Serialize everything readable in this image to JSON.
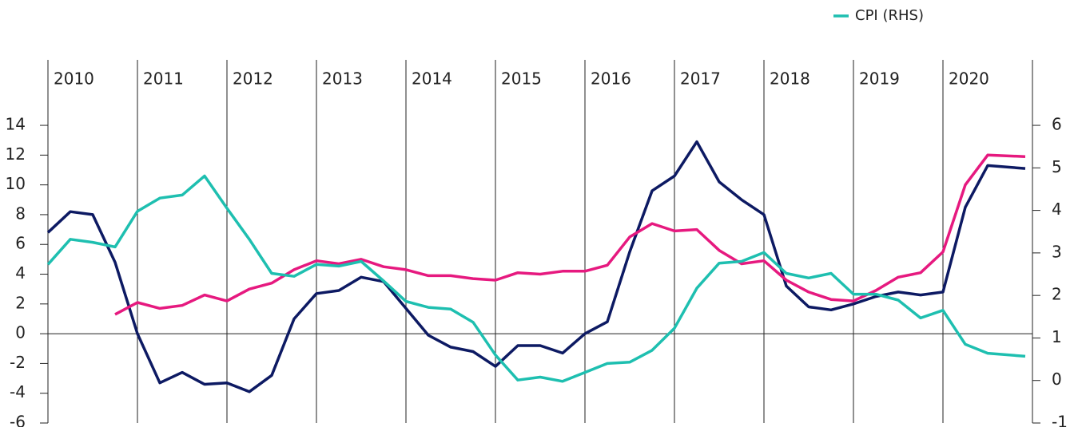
{
  "chart_data": {
    "type": "line",
    "x": [
      2010,
      2010.25,
      2010.5,
      2010.75,
      2011,
      2011.25,
      2011.5,
      2011.75,
      2012,
      2012.25,
      2012.5,
      2012.75,
      2013,
      2013.25,
      2013.5,
      2013.75,
      2014,
      2014.25,
      2014.5,
      2014.75,
      2015,
      2015.25,
      2015.5,
      2015.75,
      2016,
      2016.25,
      2016.5,
      2016.75,
      2017,
      2017.25,
      2017.5,
      2017.75,
      2018,
      2018.25,
      2018.5,
      2018.75,
      2019,
      2019.25,
      2019.5,
      2019.75,
      2020,
      2020.25,
      2020.5,
      2020.92
    ],
    "series": [
      {
        "color": "#0d1a63",
        "values": [
          6.8,
          8.2,
          8.0,
          4.8,
          0.0,
          -3.3,
          -2.6,
          -3.4,
          -3.3,
          -3.9,
          -2.8,
          1.0,
          2.7,
          2.9,
          3.8,
          3.5,
          1.7,
          -0.1,
          -0.9,
          -1.2,
          -2.2,
          -0.8,
          -0.8,
          -1.3,
          0.0,
          0.8,
          5.5,
          9.6,
          10.6,
          12.9,
          10.2,
          9.0,
          8.0,
          3.2,
          1.8,
          1.6,
          2.0,
          2.5,
          2.8,
          2.6,
          2.8,
          8.5,
          11.3,
          11.1
        ]
      },
      {
        "color": "#e6197f",
        "values": [
          null,
          null,
          null,
          1.3,
          2.1,
          1.7,
          1.9,
          2.6,
          2.2,
          3.0,
          3.4,
          4.3,
          4.9,
          4.7,
          5.0,
          4.5,
          4.3,
          3.9,
          3.9,
          3.7,
          3.6,
          4.1,
          4.0,
          4.2,
          4.2,
          4.6,
          6.5,
          7.4,
          6.9,
          7.0,
          5.6,
          4.7,
          4.9,
          3.6,
          2.8,
          2.3,
          2.2,
          2.9,
          3.8,
          4.1,
          5.5,
          10.0,
          12.0,
          11.9
        ]
      },
      {
        "name": "CPI (RHS)",
        "color": "#1ebfb0",
        "axis": "y2",
        "values": [
          2.73,
          3.32,
          3.25,
          3.14,
          3.98,
          4.29,
          4.36,
          4.81,
          4.05,
          3.32,
          2.52,
          2.45,
          2.73,
          2.69,
          2.8,
          2.34,
          1.86,
          1.72,
          1.68,
          1.37,
          0.6,
          0.01,
          0.08,
          -0.02,
          0.19,
          0.4,
          0.43,
          0.71,
          1.23,
          2.17,
          2.76,
          2.8,
          3.01,
          2.52,
          2.41,
          2.52,
          2.03,
          2.03,
          1.89,
          1.47,
          1.65,
          0.85,
          0.64,
          0.57
        ]
      }
    ],
    "xlim": [
      2010,
      2021
    ],
    "xticks": [
      2010,
      2011,
      2012,
      2013,
      2014,
      2015,
      2016,
      2017,
      2018,
      2019,
      2020
    ],
    "ylim": [
      -6,
      18.4
    ],
    "yticks": [
      -6,
      -4,
      -2,
      0,
      2,
      4,
      6,
      8,
      10,
      12,
      14
    ],
    "y2lim": [
      -1,
      7.54
    ],
    "y2ticks": [
      -1,
      0,
      1,
      2,
      3,
      4,
      5,
      6
    ]
  }
}
